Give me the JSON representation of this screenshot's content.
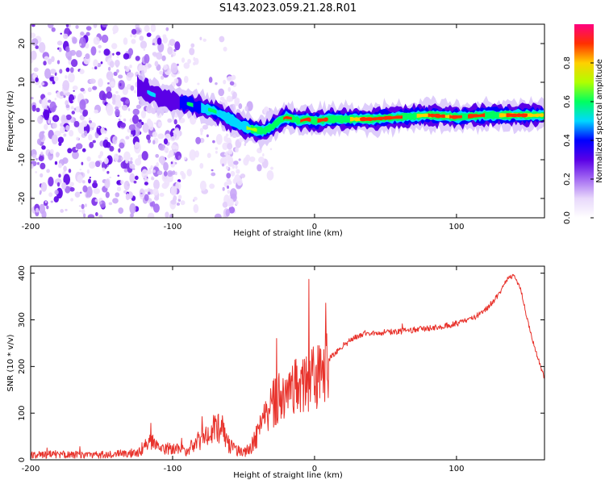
{
  "title": "S143.2023.059.21.28.R01",
  "chart_data": [
    {
      "type": "heatmap",
      "title": "",
      "xlabel": "Height of straight line (km)",
      "ylabel": "Frequency (Hz)",
      "xlim": [
        -200,
        162
      ],
      "ylim": [
        -25,
        25
      ],
      "xticks": [
        -200,
        -100,
        0,
        100
      ],
      "yticks": [
        -20,
        -10,
        0,
        10,
        20
      ],
      "grid": false,
      "ridge": {
        "x": [
          -125,
          -115,
          -100,
          -90,
          -80,
          -70,
          -60,
          -50,
          -40,
          -35,
          -30,
          -25,
          -20,
          -15,
          -10,
          -5,
          0,
          10,
          20,
          40,
          60,
          80,
          100,
          120,
          140,
          162
        ],
        "y": [
          9,
          7,
          5,
          4.5,
          3.5,
          2.5,
          0.5,
          -1.5,
          -2.5,
          -2.5,
          -1.5,
          0,
          1,
          0.5,
          0,
          0.5,
          0,
          0.5,
          0.5,
          0.5,
          1,
          1.5,
          1,
          1.5,
          1.5,
          1.5
        ]
      },
      "colorbar": {
        "label": "Normalized spectral amplitude",
        "range": [
          0,
          1
        ],
        "ticks": [
          0.0,
          0.2,
          0.4,
          0.6,
          0.8
        ],
        "colormap": [
          "#ffffff",
          "#e8d8fb",
          "#a46bf2",
          "#5a00e6",
          "#0000ff",
          "#00d8ff",
          "#00ff60",
          "#b0ff00",
          "#ffd000",
          "#ff3000",
          "#ff0080"
        ]
      }
    },
    {
      "type": "line",
      "title": "",
      "xlabel": "Height of straight line (km)",
      "ylabel": "SNR (10 * v/v)",
      "xlim": [
        -200,
        162
      ],
      "ylim": [
        0,
        415
      ],
      "xticks": [
        -200,
        -100,
        0,
        100
      ],
      "yticks": [
        0,
        100,
        200,
        300,
        400
      ],
      "grid": false,
      "series": [
        {
          "color": "#e8322b",
          "x": [
            -200,
            -180,
            -160,
            -140,
            -125,
            -115,
            -110,
            -100,
            -90,
            -80,
            -75,
            -70,
            -65,
            -60,
            -55,
            -50,
            -45,
            -40,
            -35,
            -30,
            -25,
            -20,
            -15,
            -10,
            -5,
            0,
            10,
            20,
            30,
            40,
            60,
            80,
            95,
            110,
            120,
            130,
            135,
            140,
            145,
            150,
            155,
            162
          ],
          "y": [
            10,
            12,
            10,
            12,
            15,
            40,
            22,
            25,
            20,
            45,
            50,
            70,
            60,
            30,
            20,
            15,
            25,
            55,
            85,
            115,
            140,
            150,
            155,
            165,
            160,
            175,
            215,
            245,
            265,
            272,
            275,
            282,
            288,
            300,
            320,
            355,
            385,
            395,
            370,
            300,
            240,
            175
          ]
        }
      ]
    }
  ]
}
